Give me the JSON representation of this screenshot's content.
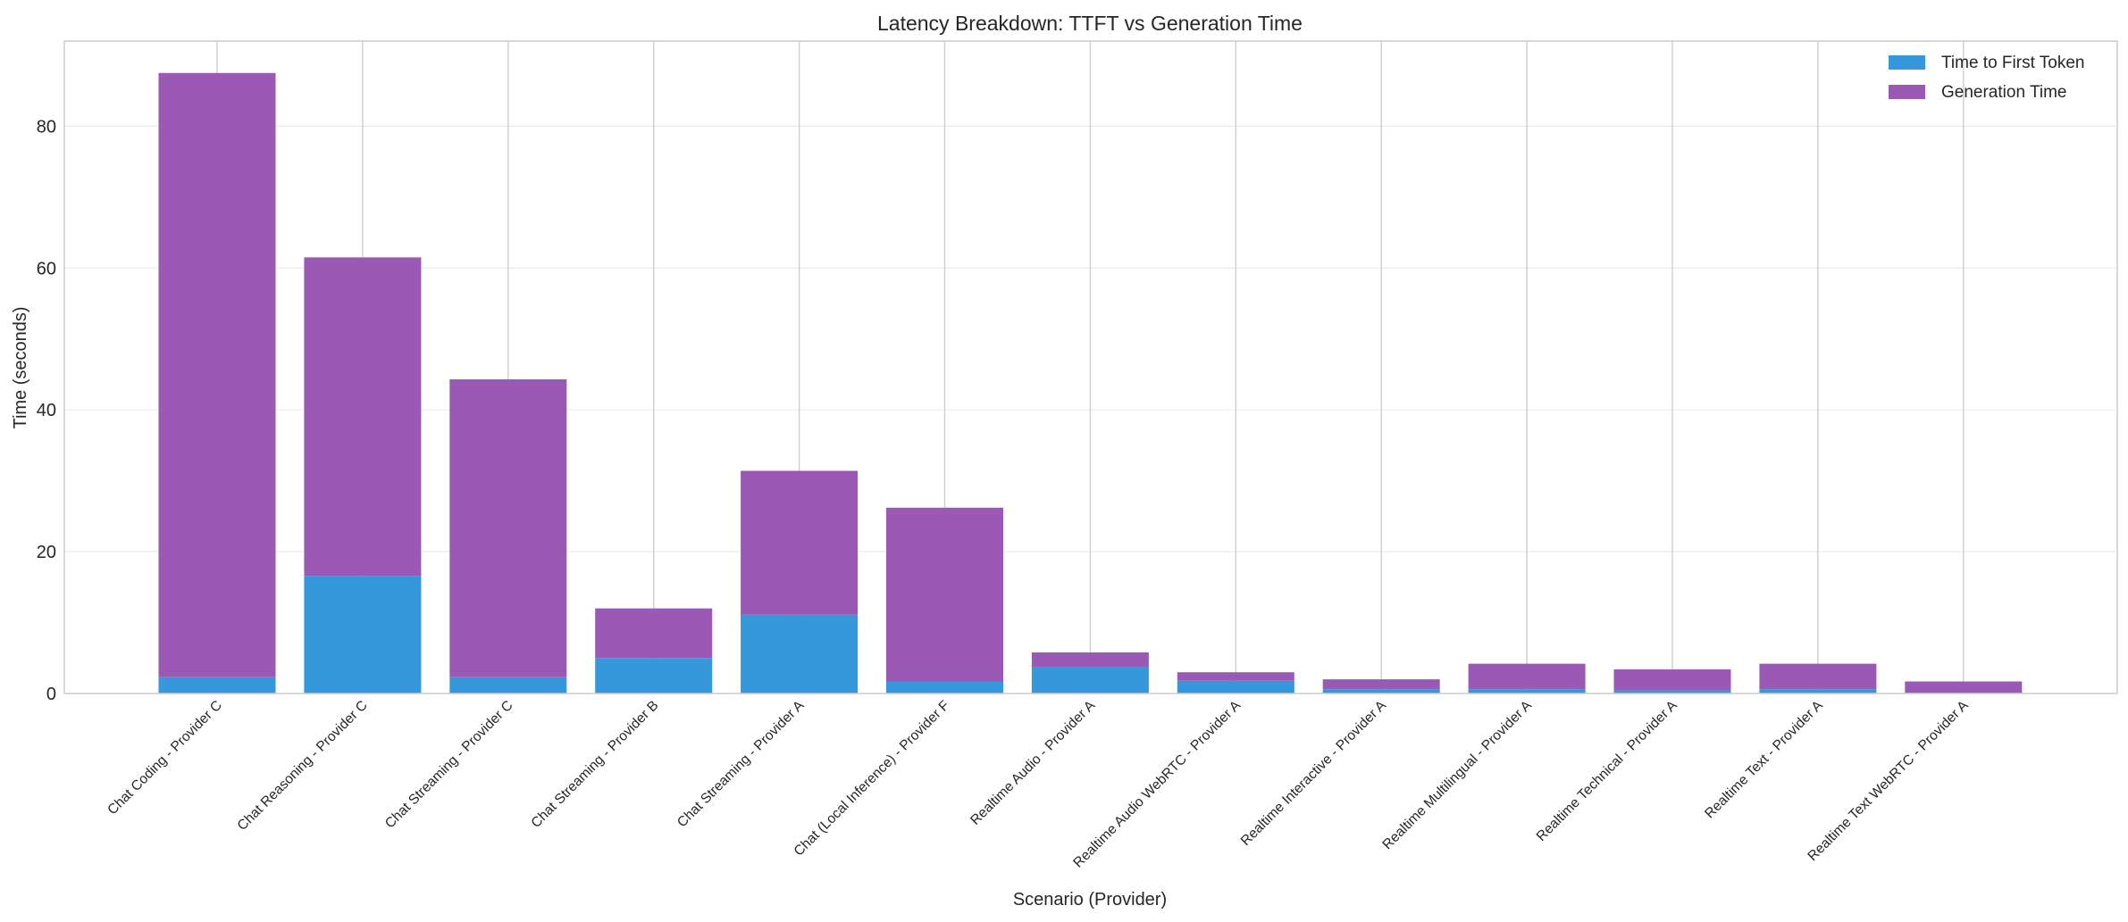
{
  "chart_data": {
    "type": "bar",
    "stacked": true,
    "title": "Latency Breakdown: TTFT vs Generation Time",
    "xlabel": "Scenario (Provider)",
    "ylabel": "Time (seconds)",
    "ylim": [
      0,
      92
    ],
    "yticks": [
      0,
      20,
      40,
      60,
      80
    ],
    "grid": true,
    "legend_position": "top-right",
    "categories": [
      "Chat Coding - Provider C",
      "Chat Reasoning - Provider C",
      "Chat Streaming - Provider C",
      "Chat Streaming - Provider B",
      "Chat Streaming - Provider A",
      "Chat (Local Inference) - Provider F",
      "Realtime Audio - Provider A",
      "Realtime Audio WebRTC - Provider A",
      "Realtime Interactive - Provider A",
      "Realtime Multilingual - Provider A",
      "Realtime Technical - Provider A",
      "Realtime Text - Provider A",
      "Realtime Text WebRTC - Provider A"
    ],
    "series": [
      {
        "name": "Time to First Token",
        "color": "#3498db",
        "values": [
          2.3,
          16.6,
          2.3,
          5.0,
          11.1,
          1.7,
          3.7,
          1.8,
          0.6,
          0.6,
          0.5,
          0.6,
          0.1
        ]
      },
      {
        "name": "Generation Time",
        "color": "#9b59b6",
        "values": [
          85.2,
          44.9,
          42.0,
          7.0,
          20.3,
          24.5,
          2.1,
          1.2,
          1.4,
          3.6,
          2.9,
          3.6,
          1.6
        ]
      }
    ]
  }
}
